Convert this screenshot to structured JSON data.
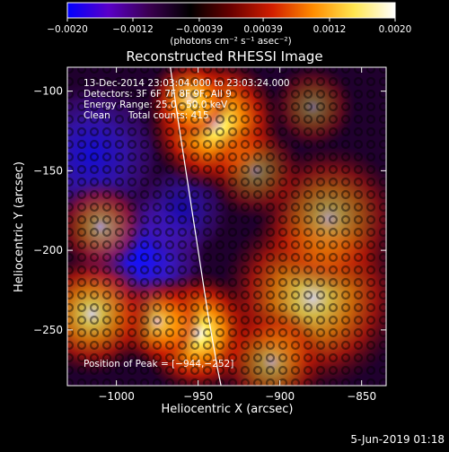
{
  "chart_data": {
    "type": "heatmap",
    "title": "Reconstructed RHESSI Image",
    "xlabel": "Heliocentric X (arcsec)",
    "ylabel": "Heliocentric Y (arcsec)",
    "xlim": [
      -1030,
      -835
    ],
    "ylim": [
      -285,
      -85
    ],
    "x_ticks": [
      -1000,
      -950,
      -900,
      -850
    ],
    "x_tick_labels": [
      "−1000",
      "−950",
      "−900",
      "−850"
    ],
    "y_ticks": [
      -100,
      -150,
      -200,
      -250
    ],
    "y_tick_labels": [
      "−100",
      "−150",
      "−200",
      "−250"
    ],
    "colorbar": {
      "range": [
        -0.002,
        0.002
      ],
      "ticks": [
        -0.002,
        -0.0012,
        -0.00039,
        0.00039,
        0.0012,
        0.002
      ],
      "tick_labels": [
        "−0.0020",
        "−0.0012",
        "−0.00039",
        "0.00039",
        "0.0012",
        "0.0020"
      ],
      "units": "(photons cm⁻² s⁻¹ asec⁻²)",
      "colormap": [
        "#0000ff",
        "#5a00c8",
        "#3a0050",
        "#000000",
        "#6a0000",
        "#d21e00",
        "#ff8c00",
        "#ffe650",
        "#ffffff"
      ]
    },
    "annotations": [
      "13-Dec-2014 23:03:04.000 to 23:03:24.000",
      "Detectors: 3F 6F 7F 8F 9F, All 9",
      "Energy Range: 25.0 - 50.0 keV",
      "Clean      Total counts: 415"
    ],
    "peak_label": "Position of Peak = [−944,−252]",
    "peak": {
      "x": -944,
      "y": -252
    },
    "limb": [
      [
        -967,
        -85
      ],
      [
        -962,
        -120
      ],
      [
        -956,
        -160
      ],
      [
        -950,
        -200
      ],
      [
        -944,
        -240
      ],
      [
        -938,
        -275
      ],
      [
        -936,
        -285
      ]
    ],
    "sources": [
      {
        "x": -940,
        "y": -120,
        "s": 22,
        "a": 1.0
      },
      {
        "x": -955,
        "y": -105,
        "s": 14,
        "a": 0.7
      },
      {
        "x": -950,
        "y": -252,
        "s": 20,
        "a": 1.0
      },
      {
        "x": -975,
        "y": -245,
        "s": 15,
        "a": 0.7
      },
      {
        "x": -1015,
        "y": -240,
        "s": 20,
        "a": 0.8
      },
      {
        "x": -1010,
        "y": -185,
        "s": 15,
        "a": 0.55
      },
      {
        "x": -880,
        "y": -230,
        "s": 30,
        "a": 0.8
      },
      {
        "x": -870,
        "y": -180,
        "s": 24,
        "a": 0.6
      },
      {
        "x": -915,
        "y": -150,
        "s": 16,
        "a": 0.45
      },
      {
        "x": -905,
        "y": -270,
        "s": 18,
        "a": 0.6
      },
      {
        "x": -880,
        "y": -110,
        "s": 14,
        "a": 0.4
      }
    ],
    "negative_regions": [
      {
        "x": -985,
        "y": -205,
        "s": 22,
        "a": 1.0
      },
      {
        "x": -1015,
        "y": -140,
        "s": 24,
        "a": 0.8
      },
      {
        "x": -960,
        "y": -175,
        "s": 16,
        "a": 0.6
      }
    ]
  },
  "footer": {
    "date": "5-Jun-2019 01:18"
  }
}
